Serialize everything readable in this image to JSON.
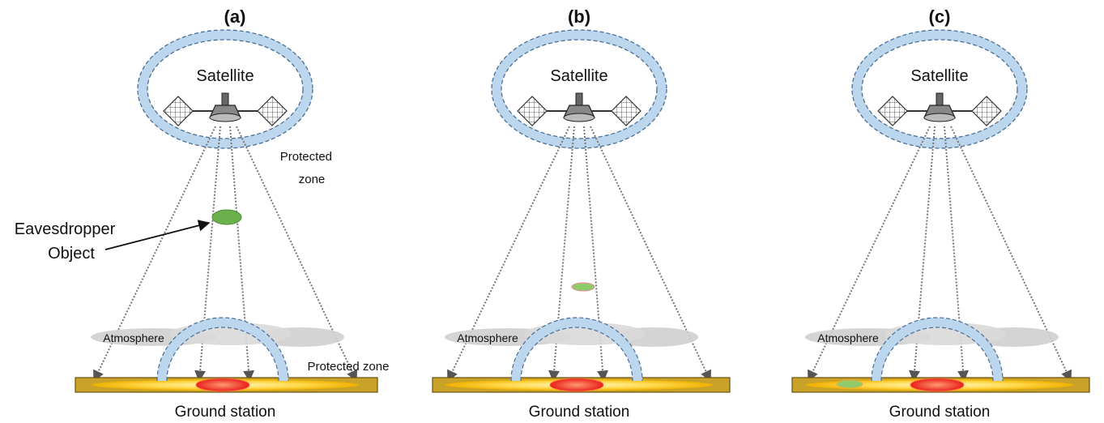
{
  "panels": [
    {
      "label": "(a)",
      "satellite_label": "Satellite",
      "ground_label": "Ground station",
      "atmosphere_label": "Atmosphere",
      "protected_zone_top": "Protected zone",
      "protected_zone_bottom": "Protected zone",
      "eavesdropper_label_line1": "Eavesdropper",
      "eavesdropper_label_line2": "Object"
    },
    {
      "label": "(b)",
      "satellite_label": "Satellite",
      "ground_label": "Ground station",
      "atmosphere_label": "Atmosphere"
    },
    {
      "label": "(c)",
      "satellite_label": "Satellite",
      "ground_label": "Ground station",
      "atmosphere_label": "Atmosphere"
    }
  ],
  "colors": {
    "zone_fill": "#bcd6ee",
    "zone_stroke": "#4a6f96",
    "ground_bar": "#c9a227",
    "ground_glow": "#ffd84a",
    "receiver": "#e8201c",
    "eavesdropper": "#6ab04c",
    "cloud": "#cfcfcf"
  }
}
